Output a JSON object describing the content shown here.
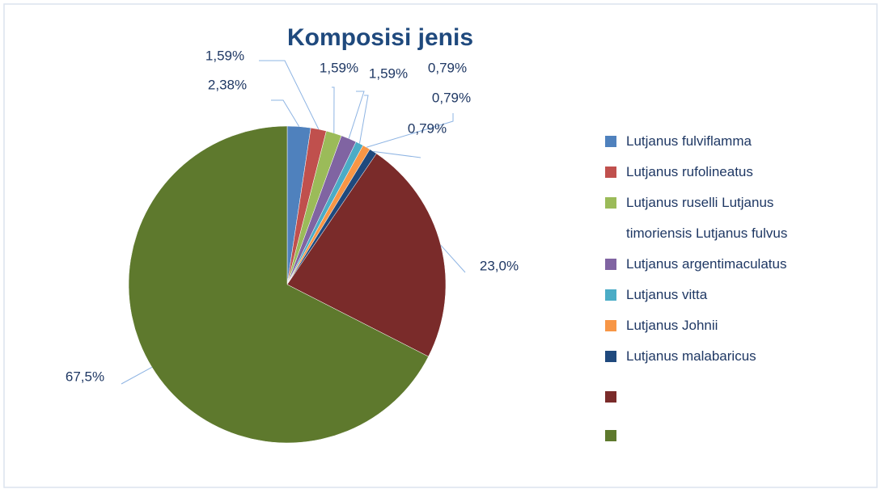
{
  "chart_data": {
    "type": "pie",
    "title": "Komposisi jenis",
    "categories": [
      "Lutjanus fulviflamma",
      "Lutjanus rufolineatus",
      "Lutjanus ruselli Lutjanus timoriensis Lutjanus fulvus",
      "Lutjanus argentimaculatus",
      "Lutjanus vitta",
      "Lutjanus Johnii",
      "Lutjanus malabaricus",
      null,
      null
    ],
    "values": [
      2.38,
      1.59,
      1.59,
      1.59,
      0.79,
      0.79,
      0.79,
      23.0,
      67.5
    ],
    "value_labels": [
      "2,38%",
      "1,59%",
      "1,59%",
      "1,59%",
      "0,79%",
      "0,79%",
      "0,79%",
      "23,0%",
      "67,5%"
    ],
    "colors": [
      "#4f81bd",
      "#c0504d",
      "#9bbb59",
      "#8064a2",
      "#4bacc6",
      "#f79646",
      "#1f497d",
      "#7a2b2a",
      "#5e792d"
    ],
    "legend": "right"
  }
}
